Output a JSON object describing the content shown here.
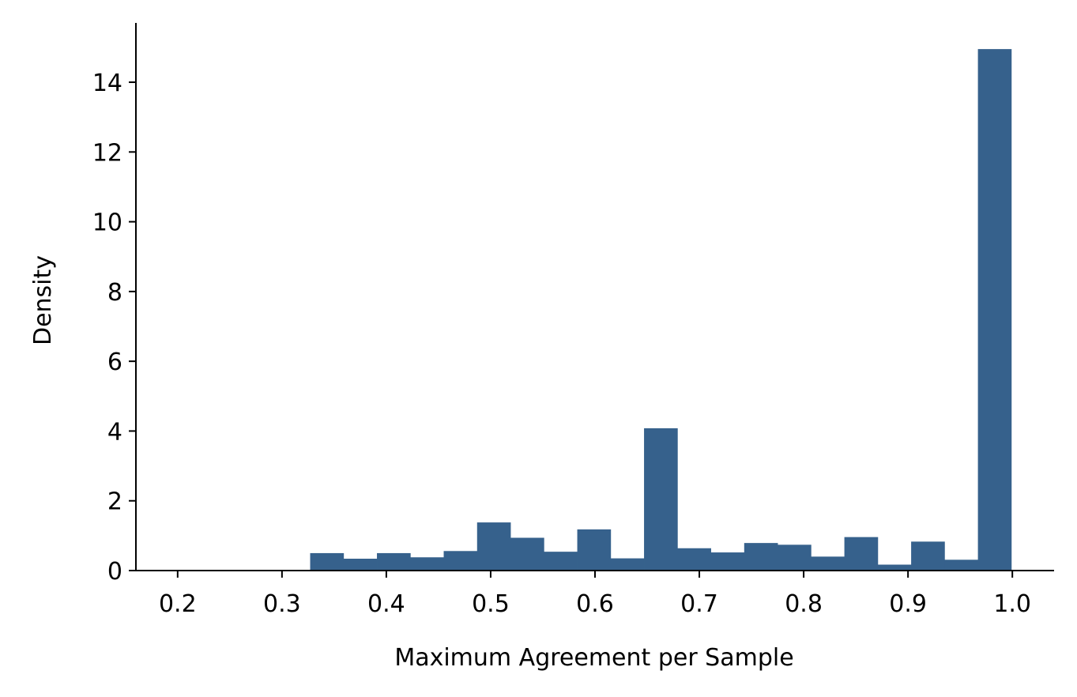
{
  "chart_data": {
    "type": "bar",
    "subtype": "histogram",
    "title": "",
    "xlabel": "Maximum Agreement per Sample",
    "ylabel": "Density",
    "xlim": [
      0.16,
      1.04
    ],
    "ylim": [
      0,
      15.7
    ],
    "xticks": [
      "0.2",
      "0.3",
      "0.4",
      "0.5",
      "0.6",
      "0.7",
      "0.8",
      "0.9",
      "1.0"
    ],
    "xtick_values": [
      0.2,
      0.3,
      0.4,
      0.5,
      0.6,
      0.7,
      0.8,
      0.9,
      1.0
    ],
    "yticks": [
      "0",
      "2",
      "4",
      "6",
      "8",
      "10",
      "12",
      "14"
    ],
    "ytick_values": [
      0,
      2,
      4,
      6,
      8,
      10,
      12,
      14
    ],
    "bin_edges": [
      0.167,
      0.199,
      0.231,
      0.263,
      0.295,
      0.327,
      0.359,
      0.391,
      0.423,
      0.455,
      0.487,
      0.519,
      0.551,
      0.583,
      0.615,
      0.647,
      0.679,
      0.711,
      0.743,
      0.775,
      0.807,
      0.839,
      0.871,
      0.903,
      0.935,
      0.967,
      0.999
    ],
    "values": [
      0,
      0,
      0,
      0,
      0,
      0.5,
      0.34,
      0.5,
      0.38,
      0.56,
      1.38,
      0.94,
      0.54,
      1.18,
      0.35,
      4.08,
      0.64,
      0.52,
      0.79,
      0.74,
      0.4,
      0.96,
      0.17,
      0.83,
      0.31,
      14.95
    ],
    "bar_color": "#36618c",
    "grid": false,
    "legend": "none"
  }
}
